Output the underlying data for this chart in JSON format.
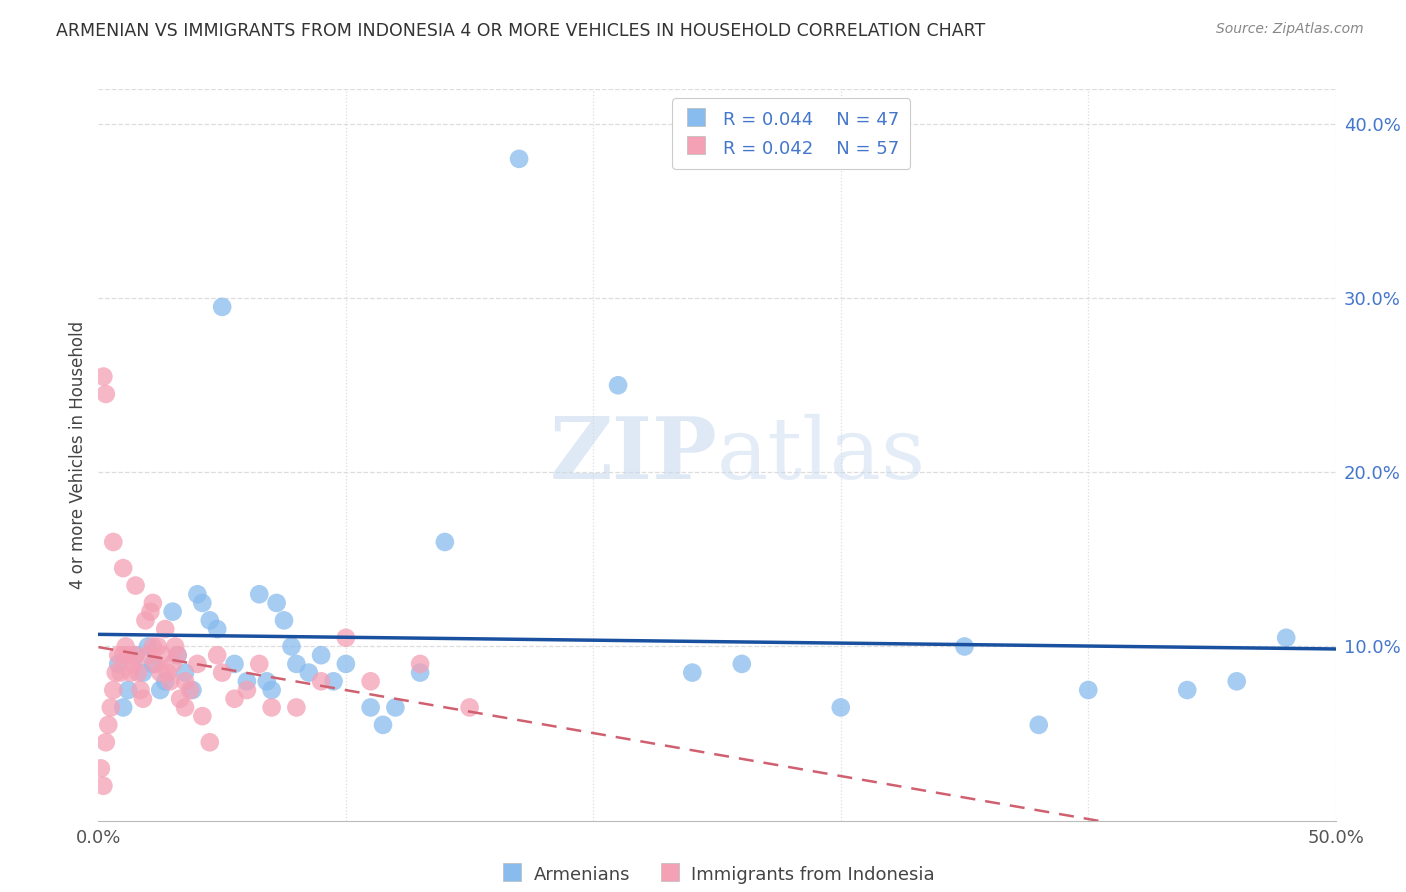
{
  "title": "ARMENIAN VS IMMIGRANTS FROM INDONESIA 4 OR MORE VEHICLES IN HOUSEHOLD CORRELATION CHART",
  "source": "Source: ZipAtlas.com",
  "ylabel": "4 or more Vehicles in Household",
  "xlim": [
    0.0,
    0.5
  ],
  "ylim": [
    0.0,
    0.42
  ],
  "xtick_positions": [
    0.0,
    0.1,
    0.2,
    0.3,
    0.4,
    0.5
  ],
  "xtick_labels": [
    "0.0%",
    "",
    "",
    "",
    "",
    "50.0%"
  ],
  "yticks_right": [
    0.1,
    0.2,
    0.3,
    0.4
  ],
  "ytick_right_labels": [
    "10.0%",
    "20.0%",
    "30.0%",
    "40.0%"
  ],
  "legend_r1": "R = 0.044",
  "legend_n1": "N = 47",
  "legend_r2": "R = 0.042",
  "legend_n2": "N = 57",
  "legend_label1": "Armenians",
  "legend_label2": "Immigrants from Indonesia",
  "color_blue": "#88bbee",
  "color_pink": "#f4a0b5",
  "color_blue_line": "#1a50a0",
  "color_pink_line": "#d06070",
  "color_title": "#333333",
  "color_source": "#888888",
  "color_r_value": "#4477cc",
  "color_n_value": "#333333",
  "background_color": "#ffffff",
  "watermark_zip": "ZIP",
  "watermark_atlas": "atlas",
  "grid_color": "#dddddd",
  "armenians_x": [
    0.008,
    0.01,
    0.012,
    0.015,
    0.018,
    0.02,
    0.022,
    0.025,
    0.027,
    0.03,
    0.032,
    0.035,
    0.038,
    0.04,
    0.042,
    0.045,
    0.048,
    0.05,
    0.055,
    0.06,
    0.065,
    0.068,
    0.07,
    0.072,
    0.075,
    0.078,
    0.08,
    0.085,
    0.09,
    0.095,
    0.1,
    0.11,
    0.115,
    0.12,
    0.13,
    0.14,
    0.17,
    0.21,
    0.24,
    0.26,
    0.3,
    0.35,
    0.38,
    0.4,
    0.44,
    0.46,
    0.48
  ],
  "armenians_y": [
    0.09,
    0.065,
    0.075,
    0.095,
    0.085,
    0.1,
    0.09,
    0.075,
    0.08,
    0.12,
    0.095,
    0.085,
    0.075,
    0.13,
    0.125,
    0.115,
    0.11,
    0.295,
    0.09,
    0.08,
    0.13,
    0.08,
    0.075,
    0.125,
    0.115,
    0.1,
    0.09,
    0.085,
    0.095,
    0.08,
    0.09,
    0.065,
    0.055,
    0.065,
    0.085,
    0.16,
    0.38,
    0.25,
    0.085,
    0.09,
    0.065,
    0.1,
    0.055,
    0.075,
    0.075,
    0.08,
    0.105
  ],
  "indonesia_x": [
    0.001,
    0.002,
    0.003,
    0.004,
    0.005,
    0.006,
    0.007,
    0.008,
    0.009,
    0.01,
    0.011,
    0.012,
    0.013,
    0.014,
    0.015,
    0.016,
    0.017,
    0.018,
    0.019,
    0.02,
    0.021,
    0.022,
    0.023,
    0.024,
    0.025,
    0.026,
    0.027,
    0.028,
    0.029,
    0.03,
    0.031,
    0.032,
    0.033,
    0.035,
    0.037,
    0.04,
    0.042,
    0.045,
    0.048,
    0.05,
    0.055,
    0.06,
    0.065,
    0.07,
    0.08,
    0.09,
    0.1,
    0.11,
    0.13,
    0.15,
    0.002,
    0.003,
    0.006,
    0.01,
    0.015,
    0.022,
    0.035
  ],
  "indonesia_y": [
    0.03,
    0.02,
    0.045,
    0.055,
    0.065,
    0.075,
    0.085,
    0.095,
    0.085,
    0.095,
    0.1,
    0.095,
    0.085,
    0.09,
    0.095,
    0.085,
    0.075,
    0.07,
    0.115,
    0.095,
    0.12,
    0.1,
    0.09,
    0.1,
    0.085,
    0.095,
    0.11,
    0.085,
    0.08,
    0.09,
    0.1,
    0.095,
    0.07,
    0.08,
    0.075,
    0.09,
    0.06,
    0.045,
    0.095,
    0.085,
    0.07,
    0.075,
    0.09,
    0.065,
    0.065,
    0.08,
    0.105,
    0.08,
    0.09,
    0.065,
    0.255,
    0.245,
    0.16,
    0.145,
    0.135,
    0.125,
    0.065
  ]
}
